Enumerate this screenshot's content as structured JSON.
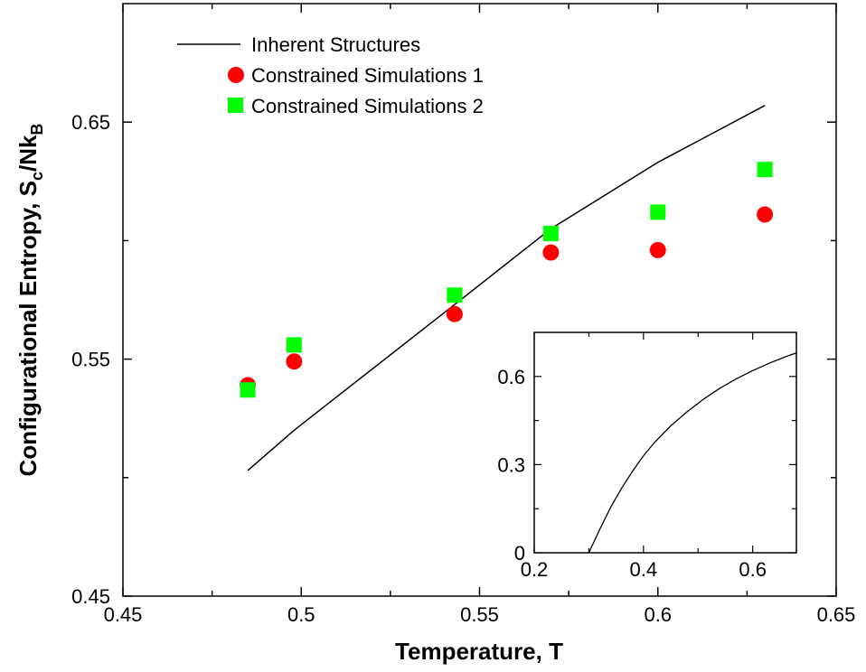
{
  "chart_data": [
    {
      "type": "scatter",
      "title": "",
      "xlabel": "Temperature, T",
      "ylabel_main": "Configurational Entropy, S",
      "ylabel_sub": "c",
      "ylabel_mid": "/Nk",
      "ylabel_sub2": "B",
      "xlim": [
        0.45,
        0.65
      ],
      "ylim": [
        0.45,
        0.7
      ],
      "x_ticks": [
        0.45,
        0.5,
        0.55,
        0.6,
        0.65
      ],
      "x_tick_labels": [
        "0.45",
        "0.5",
        "0.55",
        "0.6",
        "0.65"
      ],
      "y_ticks": [
        0.45,
        0.55,
        0.65
      ],
      "y_tick_labels": [
        "0.45",
        "0.55",
        "0.65"
      ],
      "grid": false,
      "legend_position": "top-left",
      "series": [
        {
          "name": "Inherent Structures",
          "style": "line",
          "color": "#000000",
          "x": [
            0.485,
            0.498,
            0.543,
            0.57,
            0.6,
            0.63
          ],
          "y": [
            0.503,
            0.52,
            0.573,
            0.605,
            0.633,
            0.657
          ]
        },
        {
          "name": "Constrained Simulations 1",
          "style": "circle",
          "color": "#ff0000",
          "x": [
            0.485,
            0.498,
            0.543,
            0.57,
            0.6,
            0.63
          ],
          "y": [
            0.539,
            0.549,
            0.569,
            0.595,
            0.596,
            0.611
          ]
        },
        {
          "name": "Constrained Simulations 2",
          "style": "square",
          "color": "#00ff00",
          "x": [
            0.485,
            0.498,
            0.543,
            0.57,
            0.6,
            0.63
          ],
          "y": [
            0.537,
            0.556,
            0.577,
            0.603,
            0.612,
            0.63
          ]
        }
      ]
    },
    {
      "type": "line",
      "title": "",
      "xlim": [
        0.2,
        0.68
      ],
      "ylim": [
        0,
        0.75
      ],
      "x_ticks": [
        0.2,
        0.4,
        0.6
      ],
      "x_tick_labels": [
        "0.2",
        "0.4",
        "0.6"
      ],
      "y_ticks": [
        0,
        0.3,
        0.6
      ],
      "y_tick_labels": [
        "0",
        "0.3",
        "0.6"
      ],
      "series": [
        {
          "color": "#000000",
          "x": [
            0.3,
            0.32,
            0.34,
            0.36,
            0.38,
            0.4,
            0.42,
            0.45,
            0.48,
            0.51,
            0.54,
            0.57,
            0.6,
            0.63,
            0.66,
            0.68
          ],
          "y": [
            0.0,
            0.08,
            0.155,
            0.22,
            0.278,
            0.33,
            0.375,
            0.432,
            0.48,
            0.523,
            0.56,
            0.592,
            0.62,
            0.645,
            0.667,
            0.68
          ]
        }
      ]
    }
  ]
}
